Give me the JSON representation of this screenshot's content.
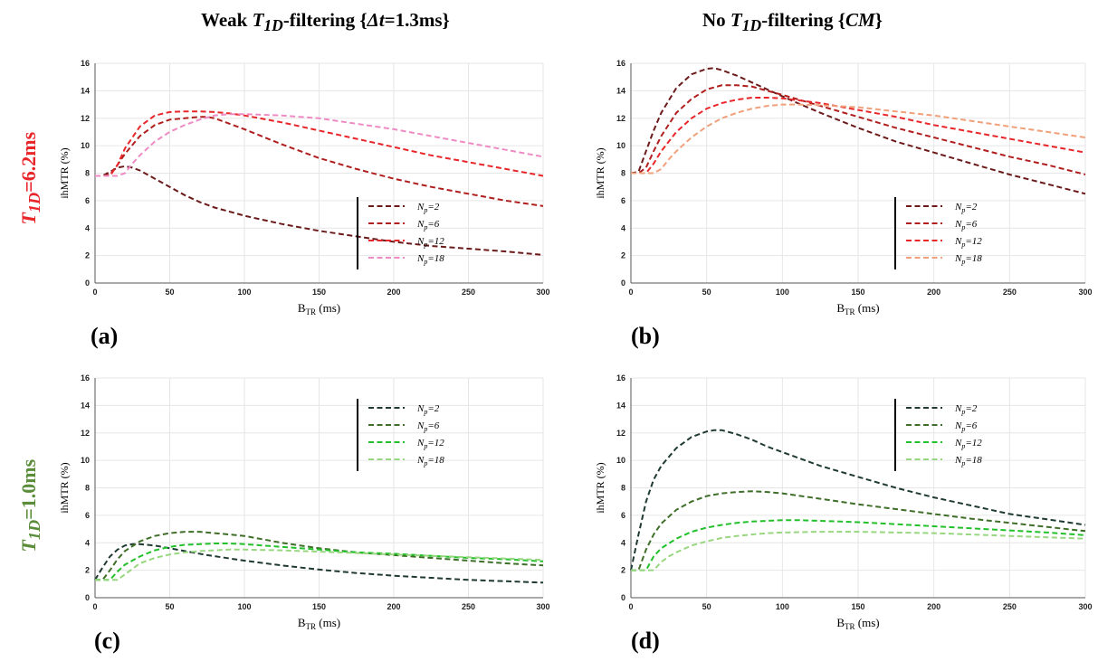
{
  "figure": {
    "col_titles": [
      {
        "pre": "Weak ",
        "sym": "T",
        "sub": "1D",
        "post": "-filtering {",
        "sym2": "Δt",
        "post2": "=1.3ms}"
      },
      {
        "pre": "No ",
        "sym": "T",
        "sub": "1D",
        "post": "-filtering {",
        "sym2": "CM",
        "post2": "}"
      }
    ],
    "row_titles": [
      {
        "sym": "T",
        "sub": "1D",
        "rest": "=6.2ms",
        "color": "#e8262a"
      },
      {
        "sym": "T",
        "sub": "1D",
        "rest": "=1.0ms",
        "color": "#5a8c3a"
      }
    ],
    "panel_labels": [
      "(a)",
      "(b)",
      "(c)",
      "(d)"
    ]
  },
  "chart_data": [
    {
      "type": "line",
      "panel": "(a)",
      "xlabel": "B",
      "xlabel_sub": "TR",
      "xlabel_unit": " (ms)",
      "ylabel": "ihMTR (%)",
      "xlim": [
        0,
        300
      ],
      "ylim": [
        0,
        16
      ],
      "xticks": [
        0,
        50,
        100,
        150,
        200,
        250,
        300
      ],
      "yticks": [
        0,
        2,
        4,
        6,
        8,
        10,
        12,
        14,
        16
      ],
      "grid": true,
      "legend_position": "lower-right",
      "series": [
        {
          "name": "Np=2",
          "color": "#6b1a1a",
          "x": [
            0,
            5,
            10,
            15,
            20,
            25,
            30,
            40,
            50,
            60,
            70,
            80,
            90,
            100,
            125,
            150,
            175,
            200,
            225,
            250,
            275,
            300
          ],
          "y": [
            7.8,
            7.8,
            8.1,
            8.4,
            8.5,
            8.4,
            8.2,
            7.6,
            7.0,
            6.4,
            5.9,
            5.5,
            5.2,
            4.9,
            4.3,
            3.8,
            3.4,
            3.0,
            2.7,
            2.5,
            2.3,
            2.05
          ]
        },
        {
          "name": "Np=6",
          "color": "#b01e1e",
          "x": [
            0,
            5,
            10,
            15,
            20,
            30,
            40,
            50,
            60,
            70,
            75,
            80,
            90,
            100,
            125,
            150,
            175,
            200,
            225,
            250,
            275,
            300
          ],
          "y": [
            7.8,
            7.8,
            7.9,
            8.6,
            9.4,
            10.7,
            11.5,
            11.9,
            12.0,
            12.1,
            12.1,
            12.0,
            11.6,
            11.2,
            10.1,
            9.1,
            8.3,
            7.6,
            7.0,
            6.5,
            6.0,
            5.6
          ]
        },
        {
          "name": "Np=12",
          "color": "#e8262a",
          "x": [
            0,
            10,
            15,
            20,
            30,
            40,
            50,
            60,
            70,
            80,
            90,
            100,
            125,
            150,
            175,
            200,
            225,
            250,
            275,
            300
          ],
          "y": [
            7.8,
            7.8,
            8.6,
            9.8,
            11.4,
            12.2,
            12.45,
            12.5,
            12.5,
            12.45,
            12.35,
            12.2,
            11.7,
            11.1,
            10.5,
            9.9,
            9.3,
            8.8,
            8.3,
            7.8
          ]
        },
        {
          "name": "Np=18",
          "color": "#ee8bc4",
          "x": [
            0,
            15,
            20,
            25,
            30,
            40,
            50,
            60,
            70,
            80,
            90,
            100,
            125,
            150,
            175,
            200,
            225,
            250,
            275,
            300
          ],
          "y": [
            7.8,
            7.8,
            8.0,
            8.7,
            9.3,
            10.3,
            11.0,
            11.5,
            11.9,
            12.2,
            12.3,
            12.3,
            12.2,
            12.0,
            11.6,
            11.2,
            10.7,
            10.2,
            9.7,
            9.2
          ]
        }
      ]
    },
    {
      "type": "line",
      "panel": "(b)",
      "xlabel": "B",
      "xlabel_sub": "TR",
      "xlabel_unit": " (ms)",
      "ylabel": "ihMTR (%)",
      "xlim": [
        0,
        300
      ],
      "ylim": [
        0,
        16
      ],
      "xticks": [
        0,
        50,
        100,
        150,
        200,
        250,
        300
      ],
      "yticks": [
        0,
        2,
        4,
        6,
        8,
        10,
        12,
        14,
        16
      ],
      "grid": true,
      "legend_position": "lower-right",
      "series": [
        {
          "name": "Np=2",
          "color": "#6b1a1a",
          "x": [
            0,
            5,
            10,
            15,
            20,
            30,
            40,
            50,
            55,
            60,
            70,
            80,
            90,
            100,
            110,
            125,
            150,
            175,
            200,
            225,
            250,
            275,
            300
          ],
          "y": [
            8.0,
            8.1,
            9.6,
            11.1,
            12.4,
            14.2,
            15.2,
            15.6,
            15.65,
            15.5,
            15.1,
            14.6,
            14.1,
            13.6,
            13.1,
            12.4,
            11.3,
            10.3,
            9.5,
            8.7,
            7.9,
            7.2,
            6.5
          ]
        },
        {
          "name": "Np=6",
          "color": "#b01e1e",
          "x": [
            0,
            5,
            10,
            15,
            20,
            30,
            40,
            50,
            60,
            70,
            80,
            90,
            100,
            125,
            150,
            175,
            200,
            225,
            250,
            275,
            300
          ],
          "y": [
            8.0,
            8.0,
            8.4,
            9.6,
            10.7,
            12.4,
            13.4,
            14.1,
            14.4,
            14.4,
            14.3,
            14.0,
            13.7,
            12.9,
            12.1,
            11.3,
            10.6,
            9.9,
            9.2,
            8.6,
            7.9
          ]
        },
        {
          "name": "Np=12",
          "color": "#e8262a",
          "x": [
            0,
            10,
            15,
            20,
            30,
            40,
            50,
            60,
            70,
            80,
            90,
            100,
            125,
            150,
            175,
            200,
            225,
            250,
            275,
            300
          ],
          "y": [
            8.0,
            8.0,
            8.7,
            9.6,
            11.0,
            12.0,
            12.7,
            13.1,
            13.35,
            13.5,
            13.5,
            13.45,
            13.1,
            12.6,
            12.1,
            11.5,
            11.0,
            10.5,
            10.0,
            9.5
          ]
        },
        {
          "name": "Np=18",
          "color": "#f0a07a",
          "x": [
            0,
            15,
            20,
            25,
            30,
            40,
            50,
            60,
            70,
            80,
            90,
            100,
            110,
            125,
            150,
            175,
            200,
            225,
            250,
            275,
            300
          ],
          "y": [
            8.0,
            8.0,
            8.3,
            9.0,
            9.6,
            10.6,
            11.4,
            12.0,
            12.4,
            12.7,
            12.9,
            13.0,
            13.0,
            12.95,
            12.8,
            12.5,
            12.2,
            11.8,
            11.4,
            11.0,
            10.6
          ]
        }
      ]
    },
    {
      "type": "line",
      "panel": "(c)",
      "xlabel": "B",
      "xlabel_sub": "TR",
      "xlabel_unit": " (ms)",
      "ylabel": "ihMTR (%)",
      "xlim": [
        0,
        300
      ],
      "ylim": [
        0,
        16
      ],
      "xticks": [
        0,
        50,
        100,
        150,
        200,
        250,
        300
      ],
      "yticks": [
        0,
        2,
        4,
        6,
        8,
        10,
        12,
        14,
        16
      ],
      "grid": true,
      "legend_position": "upper-right",
      "series": [
        {
          "name": "Np=2",
          "color": "#1f3a33",
          "x": [
            0,
            5,
            10,
            15,
            20,
            25,
            30,
            40,
            50,
            60,
            75,
            100,
            125,
            150,
            175,
            200,
            225,
            250,
            275,
            300
          ],
          "y": [
            1.3,
            2.2,
            3.0,
            3.5,
            3.8,
            3.9,
            3.9,
            3.8,
            3.6,
            3.4,
            3.1,
            2.7,
            2.35,
            2.05,
            1.8,
            1.6,
            1.45,
            1.3,
            1.2,
            1.1
          ]
        },
        {
          "name": "Np=6",
          "color": "#3e6e28",
          "x": [
            0,
            5,
            10,
            15,
            20,
            30,
            40,
            50,
            60,
            70,
            80,
            90,
            100,
            125,
            150,
            175,
            200,
            225,
            250,
            275,
            300
          ],
          "y": [
            1.3,
            1.3,
            2.0,
            2.8,
            3.4,
            4.1,
            4.5,
            4.7,
            4.8,
            4.8,
            4.7,
            4.6,
            4.5,
            4.0,
            3.6,
            3.3,
            3.1,
            2.9,
            2.7,
            2.5,
            2.35
          ]
        },
        {
          "name": "Np=12",
          "color": "#22c02a",
          "x": [
            0,
            10,
            15,
            20,
            30,
            40,
            50,
            60,
            70,
            80,
            90,
            100,
            125,
            150,
            175,
            200,
            225,
            250,
            275,
            300
          ],
          "y": [
            1.3,
            1.3,
            1.9,
            2.4,
            3.0,
            3.45,
            3.7,
            3.85,
            3.9,
            3.95,
            3.95,
            3.9,
            3.7,
            3.5,
            3.3,
            3.2,
            3.05,
            2.9,
            2.8,
            2.65
          ]
        },
        {
          "name": "Np=18",
          "color": "#98d680",
          "x": [
            0,
            15,
            20,
            25,
            30,
            40,
            50,
            60,
            70,
            80,
            90,
            100,
            125,
            150,
            175,
            200,
            225,
            250,
            275,
            300
          ],
          "y": [
            1.3,
            1.3,
            1.7,
            2.1,
            2.5,
            2.9,
            3.15,
            3.3,
            3.4,
            3.45,
            3.5,
            3.5,
            3.45,
            3.35,
            3.25,
            3.15,
            3.05,
            2.95,
            2.85,
            2.75
          ]
        }
      ]
    },
    {
      "type": "line",
      "panel": "(d)",
      "xlabel": "B",
      "xlabel_sub": "TR",
      "xlabel_unit": " (ms)",
      "ylabel": "ihMTR (%)",
      "xlim": [
        0,
        300
      ],
      "ylim": [
        0,
        16
      ],
      "xticks": [
        0,
        50,
        100,
        150,
        200,
        250,
        300
      ],
      "yticks": [
        0,
        2,
        4,
        6,
        8,
        10,
        12,
        14,
        16
      ],
      "grid": true,
      "legend_position": "upper-right",
      "series": [
        {
          "name": "Np=2",
          "color": "#1f3a33",
          "x": [
            0,
            5,
            10,
            15,
            20,
            30,
            40,
            50,
            55,
            60,
            70,
            80,
            90,
            100,
            125,
            150,
            175,
            200,
            225,
            250,
            275,
            300
          ],
          "y": [
            2.0,
            4.6,
            7.0,
            8.6,
            9.6,
            10.9,
            11.7,
            12.1,
            12.2,
            12.2,
            11.9,
            11.5,
            11.0,
            10.6,
            9.6,
            8.8,
            8.0,
            7.3,
            6.7,
            6.1,
            5.7,
            5.3
          ]
        },
        {
          "name": "Np=6",
          "color": "#3e6e28",
          "x": [
            0,
            5,
            10,
            15,
            20,
            30,
            40,
            50,
            60,
            70,
            80,
            90,
            100,
            125,
            150,
            175,
            200,
            225,
            250,
            275,
            300
          ],
          "y": [
            2.0,
            2.0,
            3.5,
            4.6,
            5.4,
            6.4,
            7.0,
            7.4,
            7.6,
            7.7,
            7.75,
            7.7,
            7.6,
            7.2,
            6.8,
            6.45,
            6.1,
            5.75,
            5.45,
            5.15,
            4.85
          ]
        },
        {
          "name": "Np=12",
          "color": "#22c02a",
          "x": [
            0,
            10,
            15,
            20,
            30,
            40,
            50,
            60,
            70,
            80,
            90,
            100,
            110,
            125,
            150,
            175,
            200,
            225,
            250,
            275,
            300
          ],
          "y": [
            2.0,
            2.0,
            3.0,
            3.6,
            4.3,
            4.8,
            5.1,
            5.3,
            5.45,
            5.55,
            5.6,
            5.65,
            5.65,
            5.6,
            5.5,
            5.35,
            5.2,
            5.05,
            4.9,
            4.75,
            4.55
          ]
        },
        {
          "name": "Np=18",
          "color": "#98d680",
          "x": [
            0,
            15,
            20,
            25,
            30,
            40,
            50,
            60,
            70,
            80,
            90,
            100,
            125,
            150,
            175,
            200,
            225,
            250,
            275,
            300
          ],
          "y": [
            2.0,
            2.0,
            2.6,
            3.0,
            3.3,
            3.8,
            4.1,
            4.35,
            4.5,
            4.6,
            4.7,
            4.75,
            4.8,
            4.8,
            4.75,
            4.7,
            4.6,
            4.5,
            4.4,
            4.3
          ]
        }
      ]
    }
  ]
}
